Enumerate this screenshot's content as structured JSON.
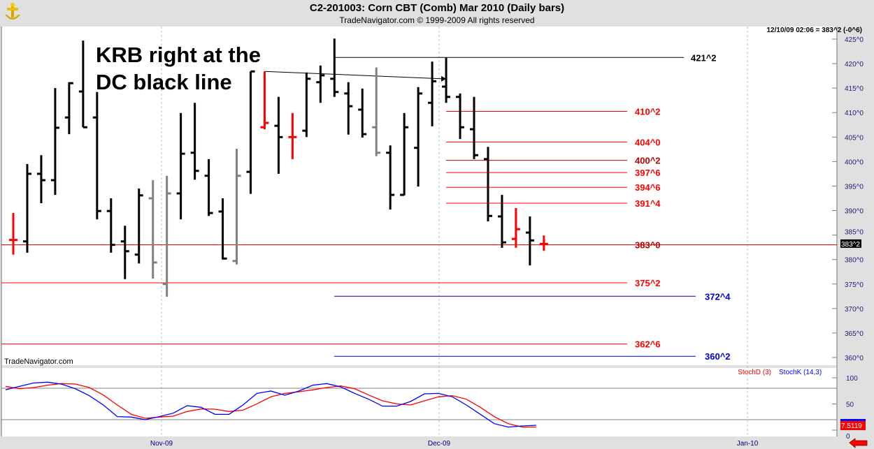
{
  "header": {
    "title": "C2-201003:  Corn CBT (Comb) Mar 2010  (Daily bars)",
    "subtitle": "TradeNavigator.com © 1999-2009 All rights reserved",
    "quote_readout": "12/10/09 02:06 = 383^2 (-0^6)",
    "watermark": "TradeNavigator.com"
  },
  "annotation": {
    "line1": "KRB right at the",
    "line2": "DC black line"
  },
  "colors": {
    "up_bar": "#000000",
    "krb_bar": "#ff0000",
    "grey_bar": "#808080",
    "level_red": "#ff0000",
    "level_darkred": "#c00000",
    "level_black": "#000000",
    "level_blue": "#0000d0",
    "stoch_d": "#ff0000",
    "stoch_k": "#0000ff"
  },
  "chart_data": [
    {
      "type": "ohlc",
      "title": "C2-201003:  Corn CBT (Comb) Mar 2010  (Daily bars)",
      "ylim": [
        357,
        426
      ],
      "y_ticks": [
        "425^0",
        "420^0",
        "415^0",
        "410^0",
        "405^0",
        "400^0",
        "395^0",
        "390^0",
        "385^0",
        "380^0",
        "375^0",
        "370^0",
        "365^0",
        "360^0"
      ],
      "y_tick_values": [
        425,
        420,
        415,
        410,
        405,
        400,
        395,
        390,
        385,
        380,
        375,
        370,
        365,
        360
      ],
      "x_ticks": [
        "Nov-09",
        "Dec-09",
        "Jan-10"
      ],
      "last_price_label": "383^2",
      "bars": [
        {
          "o": 384,
          "h": 389.5,
          "l": 381,
          "c": 384,
          "color": "red"
        },
        {
          "o": 383.7,
          "h": 399.5,
          "l": 381.4,
          "c": 397.5,
          "color": "black"
        },
        {
          "o": 397.5,
          "h": 401.3,
          "l": 391.5,
          "c": 396.2,
          "color": "black"
        },
        {
          "o": 396.2,
          "h": 415,
          "l": 393.2,
          "c": 406.9,
          "color": "black"
        },
        {
          "o": 409,
          "h": 416.2,
          "l": 405.6,
          "c": 416,
          "color": "black"
        },
        {
          "o": 414.3,
          "h": 424.7,
          "l": 407,
          "c": 407,
          "color": "black"
        },
        {
          "o": 409,
          "h": 414.2,
          "l": 388.2,
          "c": 389.9,
          "color": "black"
        },
        {
          "o": 389.9,
          "h": 392.5,
          "l": 381.4,
          "c": 383,
          "color": "black"
        },
        {
          "o": 383.7,
          "h": 386.9,
          "l": 376,
          "c": 381.7,
          "color": "black"
        },
        {
          "o": 381,
          "h": 394.5,
          "l": 379.2,
          "c": 393.1,
          "color": "black"
        },
        {
          "o": 392.5,
          "h": 396.2,
          "l": 376.1,
          "c": 379.4,
          "color": "grey"
        },
        {
          "o": 375,
          "h": 397.1,
          "l": 372.4,
          "c": 393.5,
          "color": "grey"
        },
        {
          "o": 393.5,
          "h": 409.9,
          "l": 388.2,
          "c": 401.6,
          "color": "black"
        },
        {
          "o": 401.8,
          "h": 412,
          "l": 396.3,
          "c": 398.1,
          "color": "black"
        },
        {
          "o": 397.1,
          "h": 400.5,
          "l": 388.9,
          "c": 389.5,
          "color": "black"
        },
        {
          "o": 389.8,
          "h": 392.5,
          "l": 380,
          "c": 380.2,
          "color": "black"
        },
        {
          "o": 379.7,
          "h": 402.6,
          "l": 379,
          "c": 397.1,
          "color": "grey"
        },
        {
          "o": 397.9,
          "h": 418.4,
          "l": 393.4,
          "c": 418.4,
          "color": "black"
        },
        {
          "o": 407,
          "h": 418.4,
          "l": 406.6,
          "c": 407.9,
          "color": "red"
        },
        {
          "o": 407.3,
          "h": 413.2,
          "l": 397.5,
          "c": 405,
          "color": "black"
        },
        {
          "o": 405,
          "h": 409.9,
          "l": 400.5,
          "c": 405,
          "color": "red"
        },
        {
          "o": 406.3,
          "h": 418.2,
          "l": 405,
          "c": 416.9,
          "color": "black"
        },
        {
          "o": 416.2,
          "h": 419.6,
          "l": 412,
          "c": 417.6,
          "color": "black"
        },
        {
          "o": 416.9,
          "h": 425.1,
          "l": 413.2,
          "c": 414.2,
          "color": "black"
        },
        {
          "o": 413.9,
          "h": 416.2,
          "l": 405.5,
          "c": 411.3,
          "color": "black"
        },
        {
          "o": 410.6,
          "h": 414.9,
          "l": 404.9,
          "c": 405.6,
          "color": "black"
        },
        {
          "o": 407,
          "h": 419.2,
          "l": 401.1,
          "c": 401.8,
          "color": "grey"
        },
        {
          "o": 401.8,
          "h": 403.3,
          "l": 390.2,
          "c": 393.2,
          "color": "black"
        },
        {
          "o": 393.2,
          "h": 409.9,
          "l": 393.1,
          "c": 407,
          "color": "black"
        },
        {
          "o": 402.8,
          "h": 415.2,
          "l": 394.9,
          "c": 413.9,
          "color": "black"
        },
        {
          "o": 412,
          "h": 420.4,
          "l": 407.2,
          "c": 416.4,
          "color": "black"
        },
        {
          "o": 415.3,
          "h": 421.3,
          "l": 412,
          "c": 413.2,
          "color": "black"
        },
        {
          "o": 413.2,
          "h": 413.9,
          "l": 404.6,
          "c": 407,
          "color": "black"
        },
        {
          "o": 406.6,
          "h": 413.2,
          "l": 400.5,
          "c": 401.3,
          "color": "black"
        },
        {
          "o": 400.5,
          "h": 403,
          "l": 387.8,
          "c": 388.9,
          "color": "black"
        },
        {
          "o": 388.8,
          "h": 393.2,
          "l": 382.4,
          "c": 383.5,
          "color": "black"
        },
        {
          "o": 384.2,
          "h": 390.5,
          "l": 382.4,
          "c": 386.2,
          "color": "red"
        },
        {
          "o": 385.5,
          "h": 388.8,
          "l": 378.8,
          "c": 383.9,
          "color": "black"
        },
        {
          "o": 383.2,
          "h": 384.9,
          "l": 381.8,
          "c": 383.2,
          "color": "red"
        }
      ],
      "levels": [
        {
          "label": "421^2",
          "price": 421.25,
          "color": "black",
          "from_bar": 24,
          "extent": "short"
        },
        {
          "label": "410^2",
          "price": 410.25,
          "color": "red",
          "from_bar": 32,
          "extent": "mid"
        },
        {
          "label": "404^0",
          "price": 404,
          "color": "red",
          "from_bar": 32,
          "extent": "mid"
        },
        {
          "label": "400^2",
          "price": 400.25,
          "color": "darkred",
          "from_bar": 32,
          "extent": "mid"
        },
        {
          "label": "397^6",
          "price": 397.75,
          "color": "red",
          "from_bar": 32,
          "extent": "mid"
        },
        {
          "label": "394^6",
          "price": 394.75,
          "color": "red",
          "from_bar": 32,
          "extent": "mid"
        },
        {
          "label": "391^4",
          "price": 391.5,
          "color": "red",
          "from_bar": 32,
          "extent": "mid"
        },
        {
          "label": "383^0",
          "price": 383,
          "color": "darkred",
          "from_bar": 0,
          "extent": "full"
        },
        {
          "label": "375^2",
          "price": 375.25,
          "color": "red",
          "from_bar": 0,
          "extent": "mid"
        },
        {
          "label": "372^4",
          "price": 372.5,
          "color": "blue",
          "from_bar": 24,
          "extent": "long"
        },
        {
          "label": "362^6",
          "price": 362.75,
          "color": "red",
          "from_bar": 0,
          "extent": "mid"
        },
        {
          "label": "360^2",
          "price": 360.25,
          "color": "blue",
          "from_bar": 24,
          "extent": "long"
        }
      ],
      "trendline": {
        "from_bar": 19,
        "from_price": 418.4,
        "to_bar": 32,
        "to_price": 416.9
      }
    },
    {
      "type": "line",
      "ylim": [
        0,
        100
      ],
      "y_ticks": [
        "100",
        "50",
        "0"
      ],
      "y_tick_values": [
        100,
        50,
        0
      ],
      "reference_lines": [
        80,
        20
      ],
      "last_value_label": "7.5119",
      "series": [
        {
          "name": "StochD (3)",
          "color": "#ff0000",
          "values": [
            83.6,
            79.1,
            81.3,
            85.8,
            88.9,
            88,
            81.3,
            67.1,
            48,
            30.2,
            22.7,
            24.9,
            26.7,
            35.6,
            40.4,
            40,
            35.6,
            38.2,
            50.2,
            63.6,
            70.2,
            73.3,
            76.9,
            81.3,
            84.4,
            79.1,
            67.1,
            56,
            50.2,
            48,
            56,
            63.6,
            65.8,
            59.1,
            43.6,
            25.8,
            12.4,
            5.8,
            5.8
          ]
        },
        {
          "name": "StochK (14,3)",
          "color": "#0000ff",
          "values": [
            77,
            83.6,
            90,
            91.6,
            88,
            79,
            65.8,
            48,
            25.8,
            24.9,
            20,
            25.8,
            32.4,
            46.7,
            43.6,
            30.2,
            30.2,
            48,
            70.2,
            74.7,
            66.7,
            74.7,
            85.8,
            88.9,
            82.7,
            70.2,
            59.1,
            45.8,
            45.8,
            54.7,
            69.3,
            70.2,
            63.6,
            48,
            30.2,
            12.4,
            5.8,
            8,
            9.3
          ]
        }
      ]
    }
  ]
}
